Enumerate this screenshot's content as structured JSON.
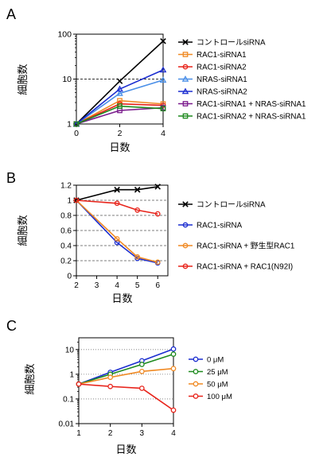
{
  "panels": [
    {
      "letter": "A"
    },
    {
      "letter": "B"
    },
    {
      "letter": "C"
    }
  ],
  "chart_data": [
    {
      "type": "line",
      "panel": "A",
      "xlabel": "日数",
      "ylabel": "細胞数",
      "x": [
        0,
        2,
        4
      ],
      "xticks": [
        0,
        2,
        4
      ],
      "xlim": [
        0,
        4
      ],
      "yscale": "log",
      "ylim": [
        1,
        100
      ],
      "yticks": [
        1,
        10,
        100
      ],
      "ytick_labels": [
        "1",
        "10",
        "100"
      ],
      "reference_line_y": 10,
      "legend_position": "right",
      "series": [
        {
          "name": "コントロールsiRNA",
          "values": [
            1,
            9,
            70
          ],
          "color": "#000000",
          "marker": "x"
        },
        {
          "name": "RAC1-siRNA1",
          "values": [
            1,
            3.3,
            2.8
          ],
          "color": "#f08a24",
          "marker": "square"
        },
        {
          "name": "RAC1-siRNA2",
          "values": [
            1,
            2.8,
            2.6
          ],
          "color": "#e8231a",
          "marker": "circle"
        },
        {
          "name": "NRAS-siRNA1",
          "values": [
            1,
            4.8,
            9.5
          ],
          "color": "#4a8fe8",
          "marker": "triangle"
        },
        {
          "name": "NRAS-siRNA2",
          "values": [
            1,
            6.0,
            16
          ],
          "color": "#1c2ed0",
          "marker": "triangle"
        },
        {
          "name": "RAC1-siRNA1 + NRAS-siRNA1",
          "values": [
            1,
            2.0,
            2.3
          ],
          "color": "#7a1a8c",
          "marker": "square"
        },
        {
          "name": "RAC1-siRNA2 + NRAS-siRNA1",
          "values": [
            1,
            2.5,
            2.2
          ],
          "color": "#1e8a1e",
          "marker": "square"
        }
      ]
    },
    {
      "type": "line",
      "panel": "B",
      "xlabel": "日数",
      "ylabel": "細胞数",
      "x": [
        2,
        4,
        5,
        6
      ],
      "xticks": [
        2,
        3,
        4,
        5,
        6
      ],
      "xlim": [
        2,
        6.5
      ],
      "ylim": [
        0,
        1.2
      ],
      "yticks": [
        0,
        0.2,
        0.4,
        0.6,
        0.8,
        1,
        1.2
      ],
      "ytick_labels": [
        "0",
        "0.2",
        "0.4",
        "0.6",
        "0.8",
        "1",
        "1.2"
      ],
      "grid": "dashed-horizontal",
      "legend_position": "right",
      "series": [
        {
          "name": "コントロールsiRNA",
          "values": [
            1,
            1.14,
            1.14,
            1.18
          ],
          "color": "#000000",
          "marker": "x"
        },
        {
          "name": "RAC1-siRNA",
          "values": [
            1,
            0.44,
            0.23,
            0.17
          ],
          "color": "#1c2ed0",
          "marker": "circle"
        },
        {
          "name": "RAC1-siRNA + 野生型RAC1",
          "values": [
            1,
            0.49,
            0.25,
            0.18
          ],
          "color": "#f08a24",
          "marker": "circle"
        },
        {
          "name": "RAC1-siRNA + RAC1(N92I)",
          "values": [
            1,
            0.96,
            0.87,
            0.82
          ],
          "color": "#e8231a",
          "marker": "circle"
        }
      ]
    },
    {
      "type": "line",
      "panel": "C",
      "xlabel": "日数",
      "ylabel": "細胞数",
      "x": [
        1,
        2,
        3,
        4
      ],
      "xticks": [
        1,
        2,
        3,
        4
      ],
      "xlim": [
        1,
        4
      ],
      "yscale": "log",
      "ylim": [
        0.01,
        30
      ],
      "yticks": [
        0.01,
        0.1,
        1,
        10
      ],
      "ytick_labels": [
        "0.01",
        "0.1",
        "1",
        "10"
      ],
      "grid": "dotted-horizontal",
      "legend_position": "right",
      "series": [
        {
          "name": "0 μM",
          "values": [
            0.4,
            1.2,
            3.5,
            10.5
          ],
          "color": "#1c2ed0",
          "marker": "circle"
        },
        {
          "name": "25 μM",
          "values": [
            0.4,
            1.0,
            2.5,
            6.5
          ],
          "color": "#1e8a1e",
          "marker": "circle"
        },
        {
          "name": "50 μM",
          "values": [
            0.4,
            0.75,
            1.3,
            1.7
          ],
          "color": "#f08a24",
          "marker": "circle"
        },
        {
          "name": "100 μM",
          "values": [
            0.4,
            0.32,
            0.27,
            0.035
          ],
          "color": "#e8231a",
          "marker": "circle"
        }
      ]
    }
  ]
}
